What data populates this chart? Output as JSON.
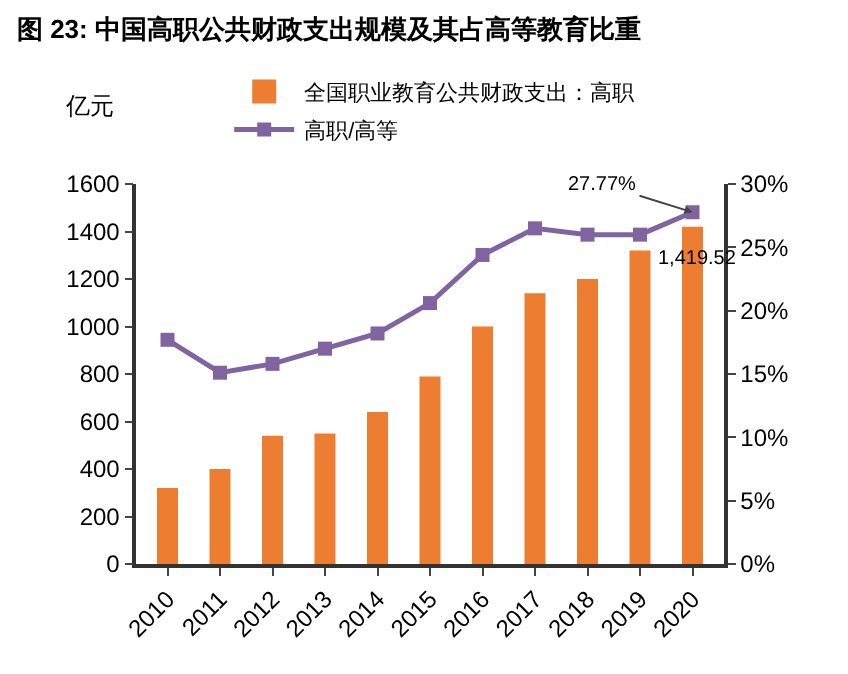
{
  "chart_data": {
    "type": "bar",
    "title": "图 23: 中国高职公共财政支出规模及其占高等教育比重",
    "ylabel": "亿元",
    "categories": [
      "2010",
      "2011",
      "2012",
      "2013",
      "2014",
      "2015",
      "2016",
      "2017",
      "2018",
      "2019",
      "2020"
    ],
    "series": [
      {
        "name": "全国职业教育公共财政支出：高职",
        "color": "#ed7d31",
        "values": [
          320,
          400,
          540,
          550,
          640,
          790,
          1000,
          1140,
          1200,
          1320,
          1419.52
        ],
        "value_labels": [
          null,
          null,
          null,
          null,
          null,
          null,
          null,
          null,
          null,
          null,
          "1,419.52"
        ]
      },
      {
        "name": "高职/高等",
        "type": "line",
        "axis": "y2",
        "color": "#8064a2",
        "marker": "square",
        "values": [
          17.7,
          15.1,
          15.8,
          17.0,
          18.2,
          20.6,
          24.4,
          26.5,
          26.0,
          26.0,
          27.77
        ],
        "value_labels": [
          null,
          null,
          null,
          null,
          null,
          null,
          null,
          null,
          null,
          null,
          "27.77%"
        ]
      }
    ],
    "ylim": [
      0,
      1600
    ],
    "yticks": [
      0,
      200,
      400,
      600,
      800,
      1000,
      1200,
      1400,
      1600
    ],
    "y2lim": [
      0,
      30
    ],
    "y2ticks": [
      {
        "value": 0,
        "label": "0%"
      },
      {
        "value": 5,
        "label": "5%"
      },
      {
        "value": 10,
        "label": "10%"
      },
      {
        "value": 15,
        "label": "15%"
      },
      {
        "value": 20,
        "label": "20%"
      },
      {
        "value": 25,
        "label": "25%"
      },
      {
        "value": 30,
        "label": "30%"
      }
    ],
    "legend": "top",
    "grid": false
  }
}
